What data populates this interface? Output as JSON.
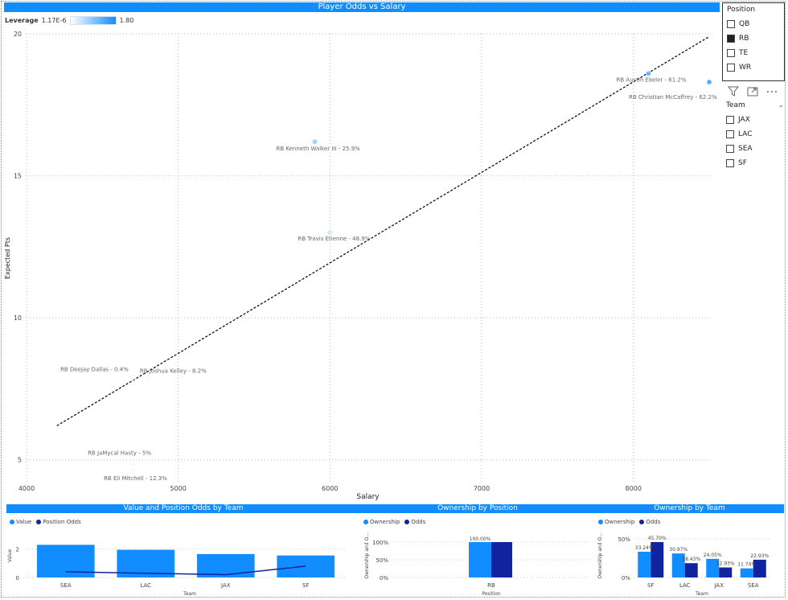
{
  "main_title": "Player Odds vs Salary",
  "leverage": {
    "label": "Leverage",
    "min": "1.17E-6",
    "max": "1.80"
  },
  "position_slicer": {
    "title": "Position",
    "items": [
      {
        "label": "QB",
        "checked": false
      },
      {
        "label": "RB",
        "checked": true
      },
      {
        "label": "TE",
        "checked": false
      },
      {
        "label": "WR",
        "checked": false
      }
    ]
  },
  "team_slicer": {
    "title": "Team",
    "items": [
      {
        "label": "JAX",
        "checked": false
      },
      {
        "label": "LAC",
        "checked": false
      },
      {
        "label": "SEA",
        "checked": false
      },
      {
        "label": "SF",
        "checked": false
      }
    ]
  },
  "icons": {
    "filter": "filter-icon",
    "focus": "focus-mode-icon",
    "more": "more-options-icon"
  },
  "colors": {
    "accent": "#118dff",
    "dark": "#12239e"
  },
  "chart_data": [
    {
      "type": "scatter",
      "title": "Player Odds vs Salary",
      "xlabel": "Salary",
      "ylabel": "Expected Pts",
      "xlim": [
        4000,
        8500
      ],
      "ylim": [
        4.2,
        20
      ],
      "xticks": [
        4000,
        5000,
        6000,
        7000,
        8000
      ],
      "yticks": [
        5,
        10,
        15,
        20
      ],
      "points": [
        {
          "x": 8100,
          "y": 18.6,
          "label": "RB Austin Ekeler - 61.2%",
          "leverage": 1.1
        },
        {
          "x": 8500,
          "y": 18.3,
          "label": "RB Christian McCaffrey - 62.2%",
          "leverage": 1.3
        },
        {
          "x": 5900,
          "y": 16.2,
          "label": "RB Kenneth Walker III - 25.9%",
          "leverage": 0.7
        },
        {
          "x": 6000,
          "y": 13.0,
          "label": "RB Travis Etienne - 48.9%",
          "leverage": 0.3
        },
        {
          "x": 4700,
          "y": 7.9,
          "label": "RB Deejay Dallas - 0.4%",
          "leverage": 0.0
        },
        {
          "x": 4800,
          "y": 7.9,
          "label": "RB Joshua Kelley - 8.2%",
          "leverage": 0.0
        },
        {
          "x": 4700,
          "y": 4.9,
          "label": "RB JaMycal Hasty - 5%",
          "leverage": 0.0
        },
        {
          "x": 4700,
          "y": 4.6,
          "label": "RB Eli Mitchell - 12.3%",
          "leverage": 0.0
        }
      ],
      "trendline": {
        "x1": 4200,
        "y1": 6.2,
        "x2": 8500,
        "y2": 19.9
      }
    },
    {
      "type": "bar",
      "title": "Value and Position Odds by Team",
      "legend": [
        "Value",
        "Position Odds"
      ],
      "xlabel": "Team",
      "ylabel": "Value",
      "categories": [
        "SEA",
        "LAC",
        "JAX",
        "SF"
      ],
      "series": [
        {
          "name": "Value",
          "values": [
            2.3,
            1.95,
            1.65,
            1.55
          ]
        },
        {
          "name": "Position Odds",
          "values": [
            0.4,
            0.3,
            0.2,
            0.8
          ]
        }
      ],
      "ylim": [
        0,
        3
      ],
      "yticks": [
        0,
        2
      ]
    },
    {
      "type": "bar",
      "title": "Ownership by Position",
      "legend": [
        "Ownership",
        "Odds"
      ],
      "xlabel": "Position",
      "ylabel": "Ownership and O...",
      "categories": [
        "RB"
      ],
      "series": [
        {
          "name": "Ownership",
          "values": [
            100
          ]
        },
        {
          "name": "Odds",
          "values": [
            100
          ]
        }
      ],
      "data_labels": [
        "100.00%"
      ],
      "ylim": [
        0,
        100
      ],
      "yticks": [
        "0%",
        "50%",
        "100%"
      ]
    },
    {
      "type": "bar",
      "title": "Ownership by Team",
      "legend": [
        "Ownership",
        "Odds"
      ],
      "xlabel": "Team",
      "ylabel": "Ownership and O...",
      "categories": [
        "SF",
        "LAC",
        "JAX",
        "SEA"
      ],
      "series": [
        {
          "name": "Ownership",
          "values": [
            33.24,
            30.97,
            24.05,
            11.74
          ]
        },
        {
          "name": "Odds",
          "values": [
            45.7,
            18.43,
            12.93,
            22.93
          ]
        }
      ],
      "data_labels": [
        [
          "33.24%",
          "30.97%",
          "24.05%",
          "11.74%"
        ],
        [
          "45.70%",
          "18.43%",
          "12.93%",
          "22.93%"
        ]
      ],
      "ylim": [
        0,
        55
      ],
      "yticks": [
        "0%",
        "50%"
      ]
    }
  ]
}
